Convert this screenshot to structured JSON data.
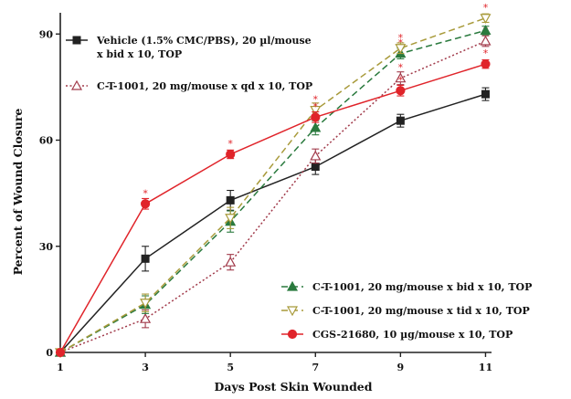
{
  "chart_data": {
    "type": "line",
    "xlabel": "Days Post Skin Wounded",
    "ylabel": "Percent of Wound Closure",
    "x": [
      1,
      3,
      5,
      7,
      9,
      11
    ],
    "xlim": [
      1,
      12
    ],
    "ylim": [
      0,
      96
    ],
    "xticks": [
      "1",
      "3",
      "5",
      "7",
      "9",
      "11"
    ],
    "yticks": [
      "0",
      "30",
      "60",
      "90"
    ],
    "grid": false,
    "series": [
      {
        "name": "Vehicle (1.5% CMC/PBS), 20 µl/mouse x bid x 10, TOP",
        "legend_lines": [
          "Vehicle (1.5% CMC/PBS), 20 µl/mouse",
          "x  bid x 10, TOP"
        ],
        "values": [
          0,
          26.5,
          43,
          52.5,
          65.5,
          73
        ],
        "errors": [
          0,
          3.5,
          2.8,
          2.2,
          1.8,
          1.8
        ],
        "color": "#222222",
        "marker": "square",
        "line_style": "solid",
        "stars": [
          false,
          false,
          false,
          false,
          false,
          false
        ]
      },
      {
        "name": "C-T-1001, 20 mg/mouse x qd x 10, TOP",
        "legend_lines": [
          "C-T-1001, 20 mg/mouse x qd x 10, TOP"
        ],
        "values": [
          0,
          9.5,
          25.5,
          55.5,
          77.5,
          88
        ],
        "errors": [
          0,
          2.5,
          2.2,
          2,
          1.8,
          1.5
        ],
        "color": "#a13a4a",
        "marker": "triangle-open",
        "line_style": "dotted",
        "stars": [
          false,
          false,
          false,
          false,
          true,
          true
        ]
      },
      {
        "name": "C-T-1001, 20 mg/mouse x bid x 10, TOP",
        "legend_lines": [
          "C-T-1001, 20 mg/mouse x bid x 10, TOP"
        ],
        "values": [
          0,
          13.5,
          37,
          63.5,
          84.5,
          91
        ],
        "errors": [
          0,
          2.5,
          3,
          2,
          1.5,
          1.2
        ],
        "color": "#2a7a3e",
        "marker": "triangle",
        "line_style": "dashed",
        "stars": [
          false,
          false,
          false,
          true,
          true,
          false
        ]
      },
      {
        "name": "C-T-1001, 20 mg/mouse x tid x 10, TOP",
        "legend_lines": [
          "C-T-1001, 20 mg/mouse x tid x 10, TOP"
        ],
        "values": [
          0,
          14,
          38,
          68.5,
          86,
          94.5
        ],
        "errors": [
          0,
          2.5,
          3,
          2,
          1.5,
          1.2
        ],
        "color": "#a89a3a",
        "marker": "triangle-down-open",
        "line_style": "dashed",
        "stars": [
          false,
          false,
          false,
          true,
          true,
          true
        ]
      },
      {
        "name": "CGS-21680, 10 µg/mouse x 10, TOP",
        "legend_lines": [
          "CGS-21680, 10 µg/mouse x 10, TOP"
        ],
        "values": [
          0,
          42,
          56,
          66.5,
          74,
          81.5
        ],
        "errors": [
          0,
          1.5,
          1.2,
          1.5,
          1.5,
          1.2
        ],
        "color": "#e0242a",
        "marker": "circle",
        "line_style": "solid",
        "stars": [
          false,
          true,
          true,
          true,
          true,
          true
        ]
      }
    ],
    "legend_placement": [
      "top-left",
      "bottom-right"
    ],
    "significance_marker": "*"
  }
}
